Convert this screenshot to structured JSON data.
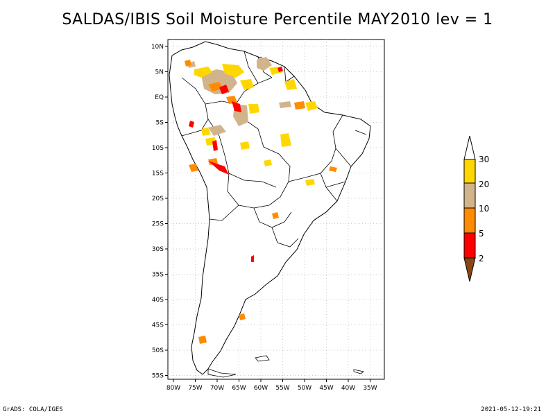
{
  "title": "SALDAS/IBIS Soil Moisture Percentile MAY2010 lev = 1",
  "lat_ticks": [
    "10N",
    "5N",
    "EQ",
    "5S",
    "10S",
    "15S",
    "20S",
    "25S",
    "30S",
    "35S",
    "40S",
    "45S",
    "50S",
    "55S"
  ],
  "lon_ticks": [
    "80W",
    "75W",
    "70W",
    "65W",
    "60W",
    "55W",
    "50W",
    "45W",
    "40W",
    "35W"
  ],
  "colorbar": {
    "labels": [
      "30",
      "20",
      "10",
      "5",
      "2"
    ],
    "colors": {
      "above_30": "#ffffff",
      "20_30": "#ffd700",
      "10_20": "#d2b48c",
      "5_10": "#ff8c00",
      "2_5": "#ff0000",
      "below_2": "#8b4513"
    }
  },
  "footer": {
    "left": "GrADS: COLA/IGES",
    "right": "2021-05-12-19:21"
  }
}
